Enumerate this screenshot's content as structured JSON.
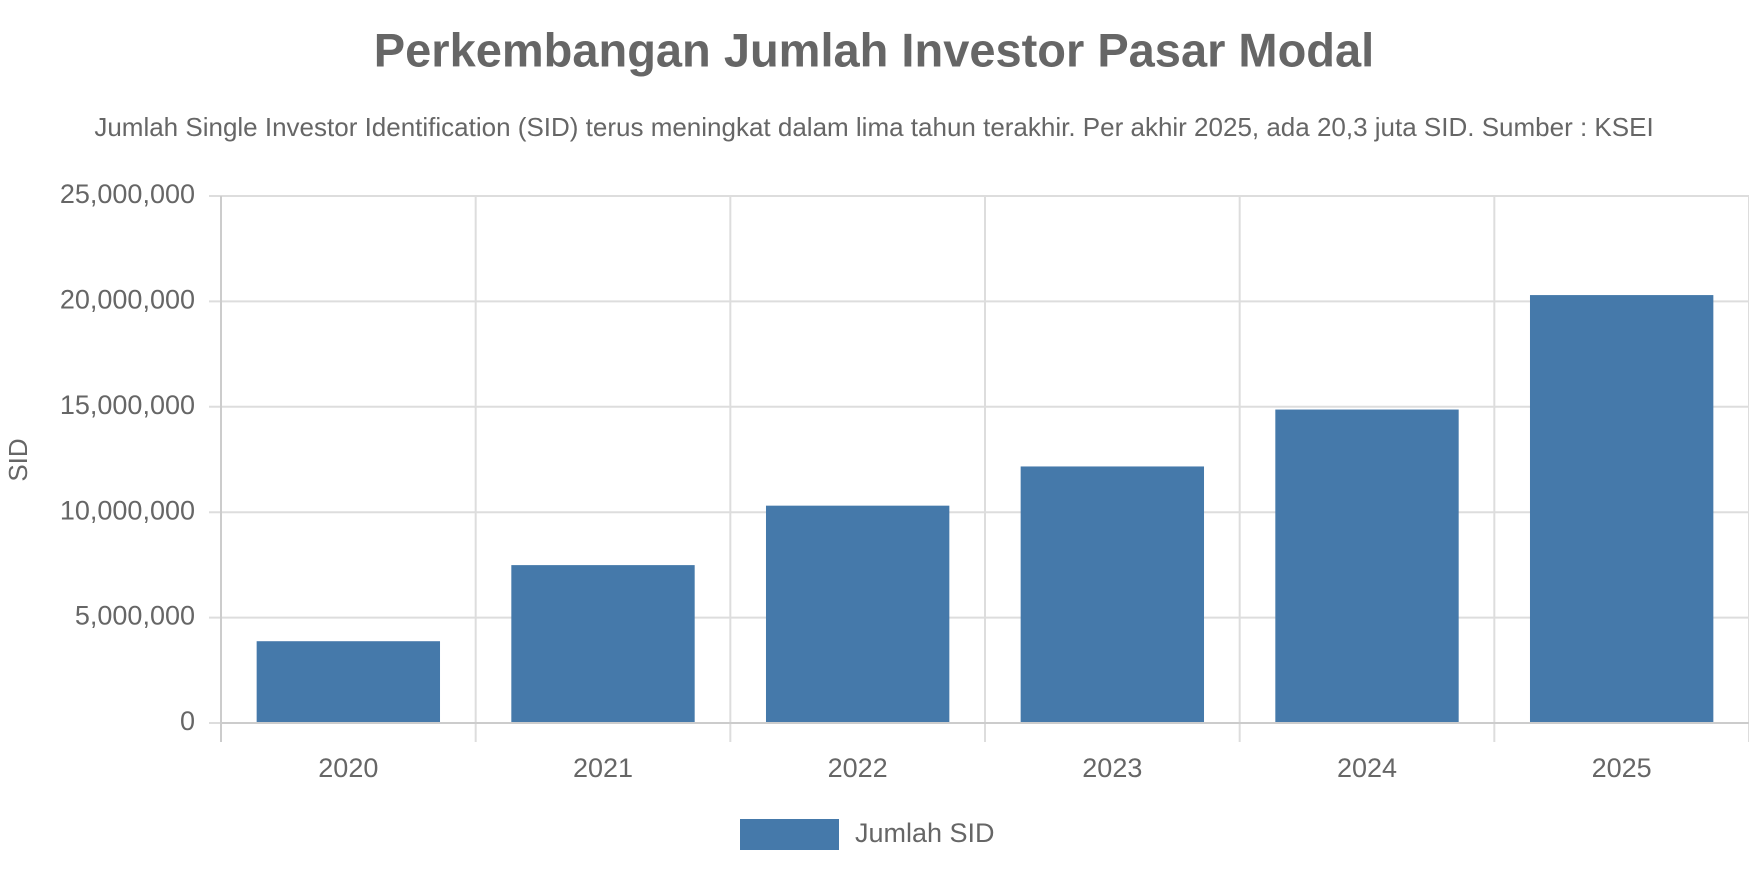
{
  "chart_data": {
    "type": "bar",
    "title": "Perkembangan Jumlah Investor Pasar Modal",
    "subtitle": "Jumlah Single Investor Identification (SID) terus meningkat dalam lima tahun terakhir. Per akhir 2025, ada 20,3 juta SID. Sumber : KSEI",
    "y_label": "SID",
    "categories": [
      "2020",
      "2021",
      "2022",
      "2023",
      "2024",
      "2025"
    ],
    "series": [
      {
        "name": "Jumlah SID",
        "color": "#4579aa",
        "values": [
          3880000,
          7490000,
          10310000,
          12170000,
          14870000,
          20300000
        ]
      }
    ],
    "ylim": [
      0,
      25000000
    ],
    "yticks": [
      0,
      {
        "value": 5000000,
        "label": "5,000,000"
      },
      {
        "value": 10000000,
        "label": "10,000,000"
      },
      {
        "value": 15000000,
        "label": "15,000,000"
      },
      {
        "value": 20000000,
        "label": "20,000,000"
      },
      {
        "value": 25000000,
        "label": "25,000,000"
      }
    ],
    "grid": true
  }
}
